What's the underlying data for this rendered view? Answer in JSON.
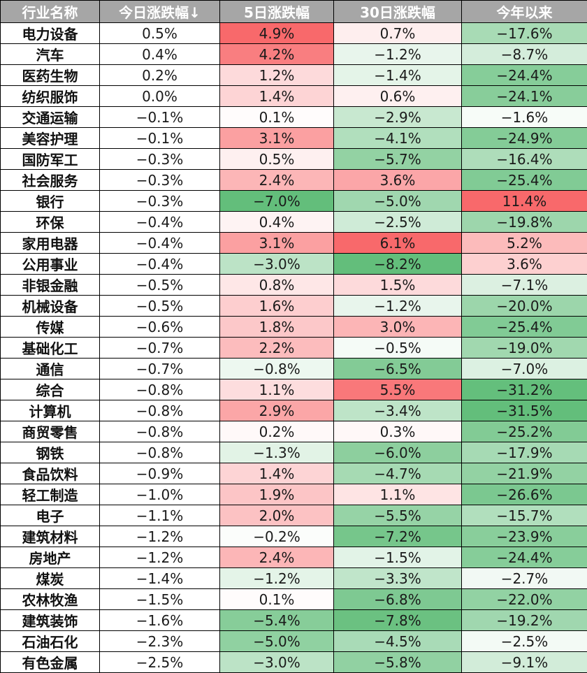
{
  "chart_data": {
    "type": "table",
    "columns": [
      "行业名称",
      "今日涨跌幅↓",
      "5日涨跌幅",
      "30日涨跌幅",
      "今年以来"
    ],
    "rows": [
      {
        "name": "电力设备",
        "values": [
          "0.5%",
          "4.9%",
          "0.7%",
          "−17.6%"
        ]
      },
      {
        "name": "汽车",
        "values": [
          "0.4%",
          "4.2%",
          "−1.2%",
          "−8.7%"
        ]
      },
      {
        "name": "医药生物",
        "values": [
          "0.2%",
          "1.2%",
          "−1.4%",
          "−24.4%"
        ]
      },
      {
        "name": "纺织服饰",
        "values": [
          "0.0%",
          "1.4%",
          "0.6%",
          "−24.1%"
        ]
      },
      {
        "name": "交通运输",
        "values": [
          "−0.1%",
          "0.1%",
          "−2.9%",
          "−1.6%"
        ]
      },
      {
        "name": "美容护理",
        "values": [
          "−0.1%",
          "3.1%",
          "−4.1%",
          "−24.9%"
        ]
      },
      {
        "name": "国防军工",
        "values": [
          "−0.3%",
          "0.5%",
          "−5.7%",
          "−16.4%"
        ]
      },
      {
        "name": "社会服务",
        "values": [
          "−0.3%",
          "2.4%",
          "3.6%",
          "−25.4%"
        ]
      },
      {
        "name": "银行",
        "values": [
          "−0.3%",
          "−7.0%",
          "−5.0%",
          "11.4%"
        ]
      },
      {
        "name": "环保",
        "values": [
          "−0.4%",
          "0.4%",
          "−2.5%",
          "−19.8%"
        ]
      },
      {
        "name": "家用电器",
        "values": [
          "−0.4%",
          "3.1%",
          "6.1%",
          "5.2%"
        ]
      },
      {
        "name": "公用事业",
        "values": [
          "−0.4%",
          "−3.0%",
          "−8.2%",
          "3.6%"
        ]
      },
      {
        "name": "非银金融",
        "values": [
          "−0.5%",
          "0.8%",
          "1.5%",
          "−7.1%"
        ]
      },
      {
        "name": "机械设备",
        "values": [
          "−0.5%",
          "1.6%",
          "−1.2%",
          "−20.0%"
        ]
      },
      {
        "name": "传媒",
        "values": [
          "−0.6%",
          "1.8%",
          "3.0%",
          "−25.4%"
        ]
      },
      {
        "name": "基础化工",
        "values": [
          "−0.7%",
          "2.2%",
          "−0.5%",
          "−19.0%"
        ]
      },
      {
        "name": "通信",
        "values": [
          "−0.7%",
          "−0.8%",
          "−6.5%",
          "−7.0%"
        ]
      },
      {
        "name": "综合",
        "values": [
          "−0.8%",
          "1.1%",
          "5.5%",
          "−31.2%"
        ]
      },
      {
        "name": "计算机",
        "values": [
          "−0.8%",
          "2.9%",
          "−3.4%",
          "−31.5%"
        ]
      },
      {
        "name": "商贸零售",
        "values": [
          "−0.8%",
          "0.2%",
          "0.3%",
          "−25.2%"
        ]
      },
      {
        "name": "钢铁",
        "values": [
          "−0.8%",
          "−1.3%",
          "−6.0%",
          "−17.9%"
        ]
      },
      {
        "name": "食品饮料",
        "values": [
          "−0.9%",
          "1.4%",
          "−4.7%",
          "−21.9%"
        ]
      },
      {
        "name": "轻工制造",
        "values": [
          "−1.0%",
          "1.9%",
          "1.1%",
          "−26.6%"
        ]
      },
      {
        "name": "电子",
        "values": [
          "−1.1%",
          "2.0%",
          "−5.5%",
          "−15.7%"
        ]
      },
      {
        "name": "建筑材料",
        "values": [
          "−1.2%",
          "−0.2%",
          "−7.2%",
          "−23.9%"
        ]
      },
      {
        "name": "房地产",
        "values": [
          "−1.2%",
          "2.4%",
          "−1.5%",
          "−24.4%"
        ]
      },
      {
        "name": "煤炭",
        "values": [
          "−1.4%",
          "−1.2%",
          "−3.3%",
          "−2.7%"
        ]
      },
      {
        "name": "农林牧渔",
        "values": [
          "−1.5%",
          "0.1%",
          "−6.8%",
          "−22.0%"
        ]
      },
      {
        "name": "建筑装饰",
        "values": [
          "−1.6%",
          "−5.4%",
          "−7.8%",
          "−19.2%"
        ]
      },
      {
        "name": "石油石化",
        "values": [
          "−2.3%",
          "−5.0%",
          "−4.5%",
          "−2.5%"
        ]
      },
      {
        "name": "有色金属",
        "values": [
          "−2.5%",
          "−3.0%",
          "−5.8%",
          "−9.1%"
        ]
      }
    ],
    "color_scale": {
      "positive": "#f8696b",
      "negative": "#63be7b",
      "neutral": "#ffffff"
    },
    "header_color": "#a6a6a6"
  }
}
